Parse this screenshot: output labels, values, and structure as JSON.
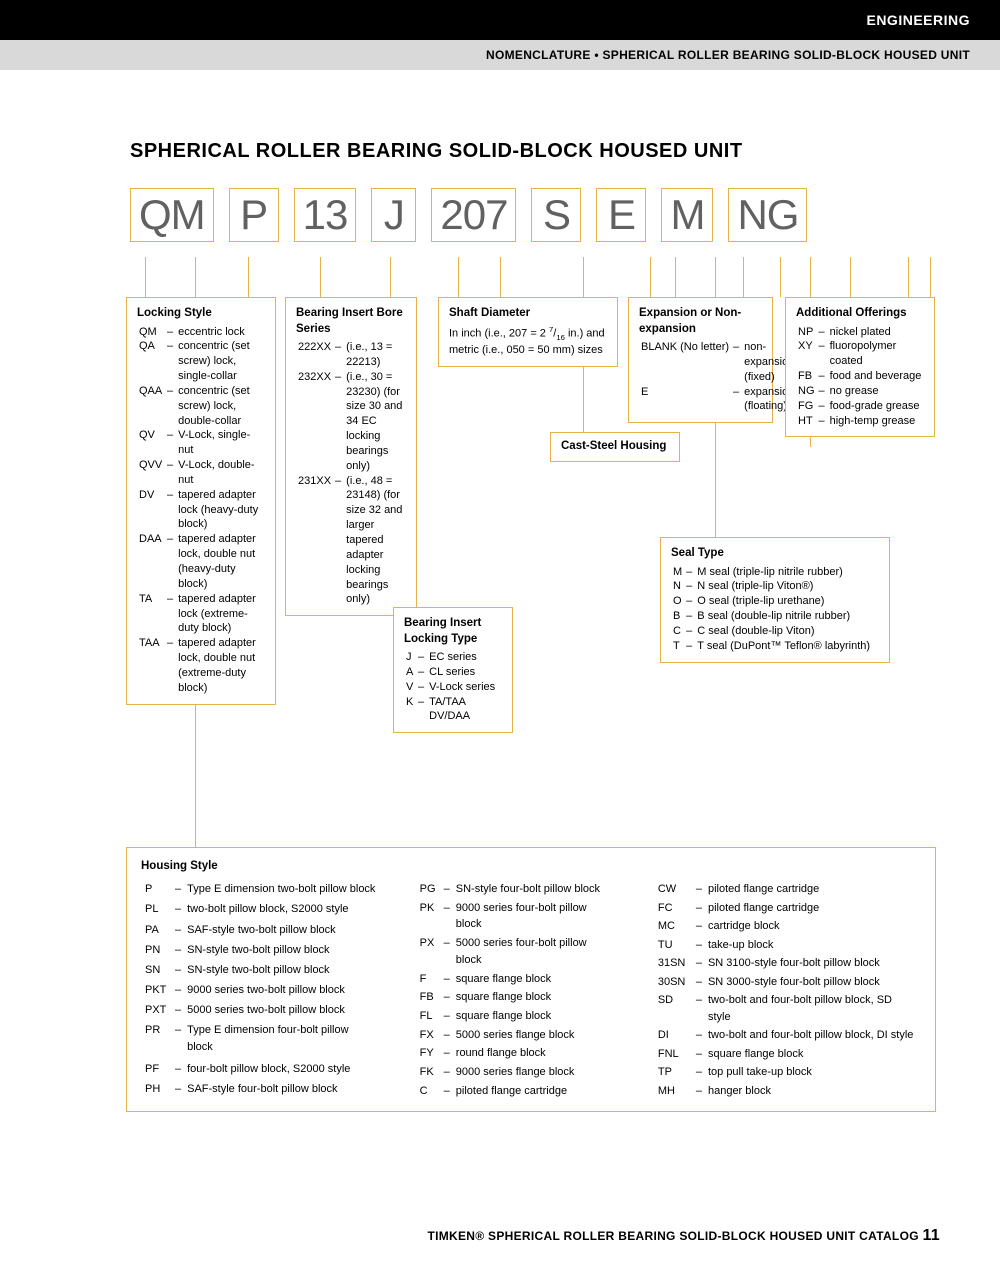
{
  "header": {
    "category": "ENGINEERING",
    "subheader": "NOMENCLATURE • SPHERICAL ROLLER BEARING SOLID-BLOCK HOUSED UNIT"
  },
  "title": "SPHERICAL ROLLER BEARING SOLID-BLOCK HOUSED UNIT",
  "codes": [
    "QM",
    "P",
    "13",
    "J",
    "207",
    "S",
    "E",
    "M",
    "NG"
  ],
  "locking_style": {
    "title": "Locking Style",
    "items": [
      {
        "c": "QM",
        "d": "eccentric lock"
      },
      {
        "c": "QA",
        "d": "concentric (set screw) lock, single-collar"
      },
      {
        "c": "QAA",
        "d": "concentric (set screw) lock, double-collar"
      },
      {
        "c": "QV",
        "d": "V-Lock, single-nut"
      },
      {
        "c": "QVV",
        "d": "V-Lock, double-nut"
      },
      {
        "c": "DV",
        "d": "tapered adapter lock (heavy-duty block)"
      },
      {
        "c": "DAA",
        "d": "tapered adapter lock, double nut (heavy-duty block)"
      },
      {
        "c": "TA",
        "d": "tapered adapter lock (extreme-duty block)"
      },
      {
        "c": "TAA",
        "d": "tapered adapter lock, double nut (extreme-duty block)"
      }
    ]
  },
  "bore_series": {
    "title": "Bearing Insert Bore Series",
    "items": [
      {
        "c": "222XX",
        "d": "(i.e., 13 = 22213)"
      },
      {
        "c": "232XX",
        "d": "(i.e., 30 = 23230) (for size 30 and 34 EC locking bearings only)"
      },
      {
        "c": "231XX",
        "d": "(i.e., 48 = 23148) (for size 32 and larger tapered adapter locking bearings only)"
      }
    ]
  },
  "locking_type": {
    "title": "Bearing Insert Locking Type",
    "items": [
      {
        "c": "J",
        "d": "EC series"
      },
      {
        "c": "A",
        "d": "CL series"
      },
      {
        "c": "V",
        "d": "V-Lock series"
      },
      {
        "c": "K",
        "d": "TA/TAA DV/DAA"
      }
    ]
  },
  "shaft_diameter": {
    "title": "Shaft Diameter",
    "desc": "In inch (i.e., 207 = 2 7/16 in.) and metric (i.e., 050 = 50 mm) sizes"
  },
  "cast_steel": {
    "title": "Cast-Steel Housing"
  },
  "expansion": {
    "title": "Expansion or Non-expansion",
    "items": [
      {
        "c": "BLANK (No letter)",
        "d": "non-expansion (fixed)"
      },
      {
        "c": "E",
        "d": "expansion (floating)"
      }
    ]
  },
  "seal_type": {
    "title": "Seal Type",
    "items": [
      {
        "c": "M",
        "d": "M seal (triple-lip nitrile rubber)"
      },
      {
        "c": "N",
        "d": "N seal (triple-lip Viton®)"
      },
      {
        "c": "O",
        "d": "O seal (triple-lip urethane)"
      },
      {
        "c": "B",
        "d": "B seal (double-lip nitrile rubber)"
      },
      {
        "c": "C",
        "d": "C seal (double-lip Viton)"
      },
      {
        "c": "T",
        "d": "T seal (DuPont™ Teflon® labyrinth)"
      }
    ]
  },
  "additional": {
    "title": "Additional Offerings",
    "items": [
      {
        "c": "NP",
        "d": "nickel plated"
      },
      {
        "c": "XY",
        "d": "fluoropolymer coated"
      },
      {
        "c": "FB",
        "d": "food and beverage"
      },
      {
        "c": "NG",
        "d": "no grease"
      },
      {
        "c": "FG",
        "d": "food-grade grease"
      },
      {
        "c": "HT",
        "d": "high-temp grease"
      }
    ]
  },
  "housing": {
    "title": "Housing Style",
    "col1": [
      {
        "c": "P",
        "d": "Type E dimension two-bolt pillow block"
      },
      {
        "c": "PL",
        "d": "two-bolt pillow block, S2000 style"
      },
      {
        "c": "PA",
        "d": "SAF-style two-bolt pillow block"
      },
      {
        "c": "PN",
        "d": "SN-style two-bolt pillow block"
      },
      {
        "c": "SN",
        "d": "SN-style two-bolt pillow block"
      },
      {
        "c": "PKT",
        "d": "9000 series two-bolt pillow block"
      },
      {
        "c": "PXT",
        "d": "5000 series two-bolt pillow block"
      },
      {
        "c": "PR",
        "d": "Type E dimension four-bolt pillow block"
      },
      {
        "c": "PF",
        "d": "four-bolt pillow block, S2000 style"
      },
      {
        "c": "PH",
        "d": "SAF-style four-bolt pillow block"
      }
    ],
    "col2": [
      {
        "c": "PG",
        "d": "SN-style four-bolt pillow block"
      },
      {
        "c": "PK",
        "d": "9000 series four-bolt pillow block"
      },
      {
        "c": "PX",
        "d": "5000 series four-bolt pillow block"
      },
      {
        "c": "F",
        "d": "square flange block"
      },
      {
        "c": "FB",
        "d": "square flange block"
      },
      {
        "c": "FL",
        "d": "square flange block"
      },
      {
        "c": "FX",
        "d": "5000 series flange block"
      },
      {
        "c": "FY",
        "d": "round flange block"
      },
      {
        "c": "FK",
        "d": "9000 series flange block"
      },
      {
        "c": "C",
        "d": "piloted flange cartridge"
      }
    ],
    "col3": [
      {
        "c": "CW",
        "d": "piloted flange cartridge"
      },
      {
        "c": "FC",
        "d": "piloted flange cartridge"
      },
      {
        "c": "MC",
        "d": "cartridge block"
      },
      {
        "c": "TU",
        "d": "take-up block"
      },
      {
        "c": "31SN",
        "d": "SN 3100-style four-bolt pillow block"
      },
      {
        "c": "30SN",
        "d": "SN 3000-style four-bolt pillow block"
      },
      {
        "c": "SD",
        "d": "two-bolt and four-bolt pillow block, SD style"
      },
      {
        "c": "DI",
        "d": "two-bolt and four-bolt pillow block, DI style"
      },
      {
        "c": "FNL",
        "d": "square flange block"
      },
      {
        "c": "TP",
        "d": "top pull take-up block"
      },
      {
        "c": "MH",
        "d": "hanger block"
      }
    ]
  },
  "footer": {
    "brand": "TIMKEN®",
    "text": "SPHERICAL ROLLER BEARING SOLID-BLOCK HOUSED UNIT CATALOG",
    "page": "11"
  },
  "colors": {
    "box_border": "#e5b34a",
    "code_text": "#616161"
  }
}
